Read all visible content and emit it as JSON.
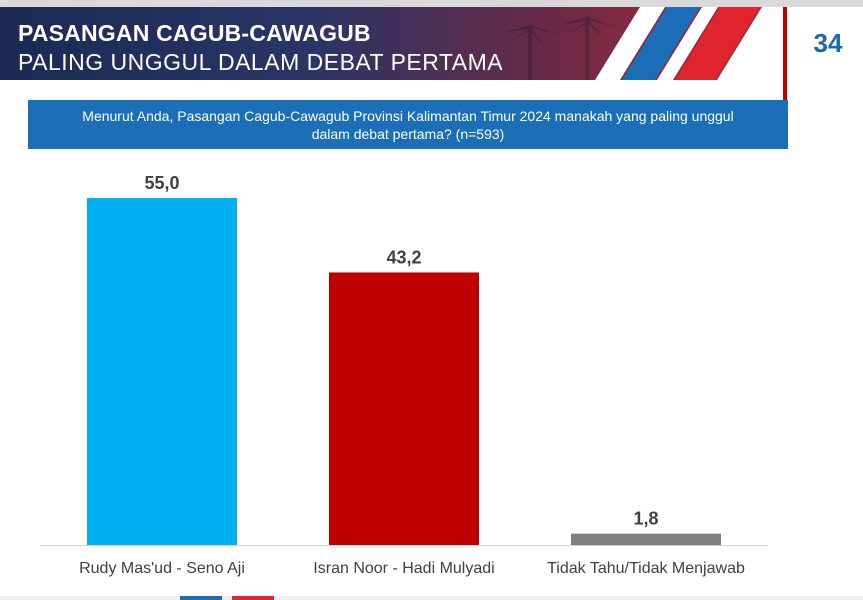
{
  "header": {
    "title_line1": "PASANGAN CAGUB-CAWAGUB",
    "title_line2": "PALING UNGGUL DALAM DEBAT PERTAMA",
    "page_number": "34"
  },
  "question": "Menurut Anda, Pasangan Cagub-Cawagub Provinsi Kalimantan Timur 2024 manakah yang paling unggul dalam debat pertama? (n=593)",
  "colors": {
    "accent_blue": "#1b6fb8",
    "accent_red": "#c00000",
    "banner_dark": "#1b2a55"
  },
  "chart_data": {
    "type": "bar",
    "categories": [
      "Rudy Mas'ud - Seno Aji",
      "Isran Noor - Hadi Mulyadi",
      "Tidak Tahu/Tidak Menjawab"
    ],
    "values": [
      55.0,
      43.2,
      1.8
    ],
    "data_labels": [
      "55,0",
      "43,2",
      "1,8"
    ],
    "colors": [
      "#00b0f0",
      "#c00000",
      "#7f7f7f"
    ],
    "title": "",
    "xlabel": "",
    "ylabel": "",
    "ylim": [
      0,
      58
    ],
    "grid": false,
    "legend": "none"
  }
}
